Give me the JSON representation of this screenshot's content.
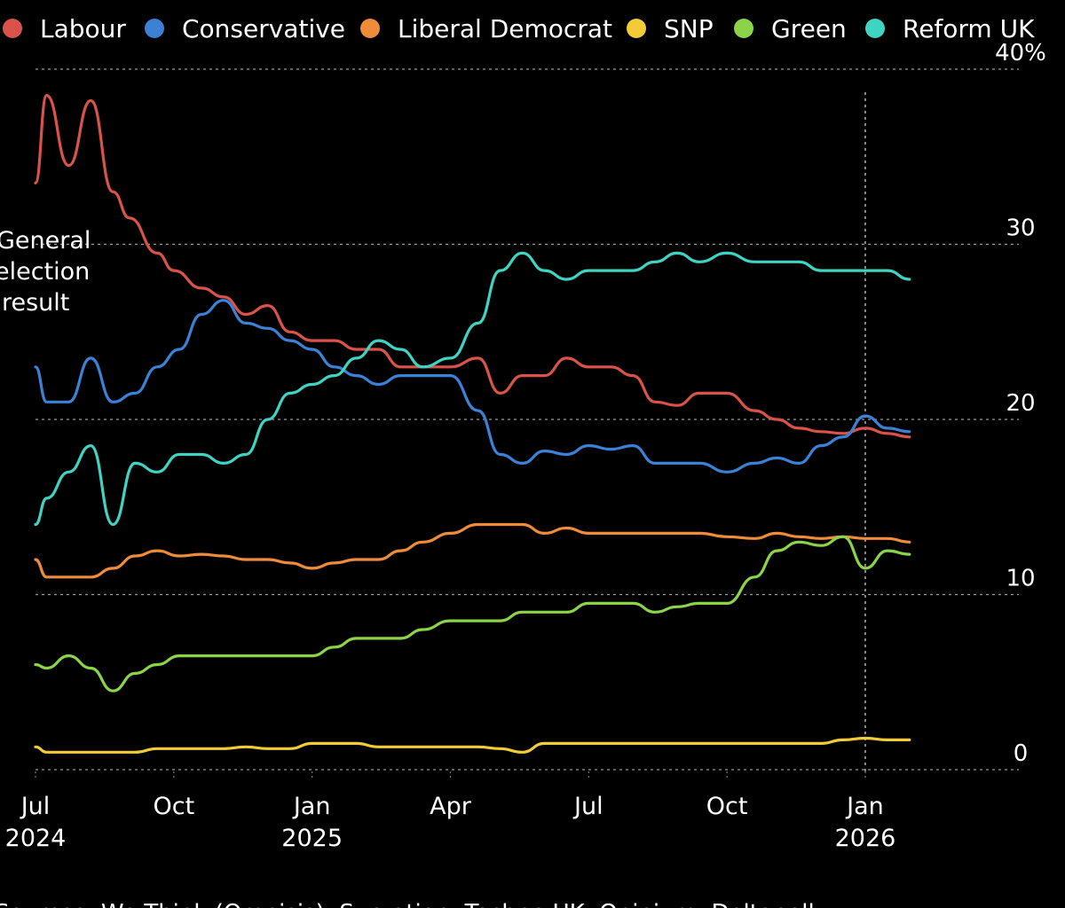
{
  "chart_data": {
    "type": "line",
    "title": "",
    "xlabel": "",
    "ylabel": "",
    "ylim": [
      0,
      40
    ],
    "y_ticks": [
      0,
      10,
      20,
      30,
      40
    ],
    "y_tick_labels": [
      "0",
      "10",
      "20",
      "30",
      "40%"
    ],
    "x_range": [
      2024.5,
      2026.13
    ],
    "x_ticks": [
      {
        "value": 2024.5,
        "line1": "Jul",
        "line2": "2024"
      },
      {
        "value": 2024.75,
        "line1": "Oct",
        "line2": ""
      },
      {
        "value": 2025.0,
        "line1": "Jan",
        "line2": "2025"
      },
      {
        "value": 2025.25,
        "line1": "Apr",
        "line2": ""
      },
      {
        "value": 2025.5,
        "line1": "Jul",
        "line2": ""
      },
      {
        "value": 2025.75,
        "line1": "Oct",
        "line2": ""
      },
      {
        "value": 2026.0,
        "line1": "Jan",
        "line2": "2026"
      }
    ],
    "reference_line": {
      "x": 2026.0
    },
    "annotation": {
      "lines": [
        "General",
        "election",
        "result"
      ]
    },
    "legend_position": "top",
    "source_note": "Sources: We Think (Omnisis), Survation, Techne UK, Opinium, Deltapoll",
    "series": [
      {
        "name": "Labour",
        "color": "#d9534a",
        "x": [
          2024.5,
          2024.52,
          2024.56,
          2024.6,
          2024.64,
          2024.67,
          2024.72,
          2024.75,
          2024.8,
          2024.84,
          2024.88,
          2024.92,
          2024.96,
          2025.0,
          2025.04,
          2025.08,
          2025.12,
          2025.16,
          2025.2,
          2025.25,
          2025.3,
          2025.34,
          2025.38,
          2025.42,
          2025.46,
          2025.5,
          2025.54,
          2025.58,
          2025.62,
          2025.66,
          2025.7,
          2025.75,
          2025.8,
          2025.84,
          2025.88,
          2025.92,
          2025.96,
          2026.0,
          2026.04,
          2026.08
        ],
        "values": [
          33.5,
          38.5,
          34.5,
          38.2,
          33,
          31.5,
          29.5,
          28.5,
          27.5,
          27,
          26,
          26.5,
          25,
          24.5,
          24.5,
          24,
          24,
          23,
          23,
          23,
          23.5,
          21.5,
          22.5,
          22.5,
          23.5,
          23,
          23,
          22.5,
          21,
          20.8,
          21.5,
          21.5,
          20.5,
          20,
          19.5,
          19.3,
          19.2,
          19.5,
          19.2,
          19
        ]
      },
      {
        "name": "Conservative",
        "color": "#3b82d6",
        "x": [
          2024.5,
          2024.52,
          2024.56,
          2024.6,
          2024.64,
          2024.68,
          2024.72,
          2024.76,
          2024.8,
          2024.84,
          2024.88,
          2024.92,
          2024.96,
          2025.0,
          2025.04,
          2025.08,
          2025.12,
          2025.16,
          2025.2,
          2025.25,
          2025.3,
          2025.34,
          2025.38,
          2025.42,
          2025.46,
          2025.5,
          2025.54,
          2025.58,
          2025.62,
          2025.66,
          2025.7,
          2025.75,
          2025.8,
          2025.84,
          2025.88,
          2025.92,
          2025.96,
          2026.0,
          2026.04,
          2026.08
        ],
        "values": [
          23,
          21,
          21,
          23.5,
          21,
          21.5,
          23,
          24,
          26,
          26.8,
          25.5,
          25.2,
          24.5,
          24,
          23,
          22.5,
          22,
          22.5,
          22.5,
          22.5,
          20.5,
          18,
          17.5,
          18.2,
          18,
          18.5,
          18.3,
          18.5,
          17.5,
          17.5,
          17.5,
          17,
          17.5,
          17.8,
          17.5,
          18.5,
          19,
          20.2,
          19.5,
          19.3
        ]
      },
      {
        "name": "Liberal Democrat",
        "color": "#ef8c3a",
        "x": [
          2024.5,
          2024.52,
          2024.56,
          2024.6,
          2024.64,
          2024.68,
          2024.72,
          2024.76,
          2024.8,
          2024.84,
          2024.88,
          2024.92,
          2024.96,
          2025.0,
          2025.04,
          2025.08,
          2025.12,
          2025.16,
          2025.2,
          2025.25,
          2025.3,
          2025.34,
          2025.38,
          2025.42,
          2025.46,
          2025.5,
          2025.54,
          2025.58,
          2025.62,
          2025.66,
          2025.7,
          2025.75,
          2025.8,
          2025.84,
          2025.88,
          2025.92,
          2025.96,
          2026.0,
          2026.04,
          2026.08
        ],
        "values": [
          12,
          11,
          11,
          11,
          11.5,
          12.2,
          12.5,
          12.2,
          12.3,
          12.2,
          12,
          12,
          11.8,
          11.5,
          11.8,
          12,
          12,
          12.5,
          13,
          13.5,
          14,
          14,
          14,
          13.5,
          13.8,
          13.5,
          13.5,
          13.5,
          13.5,
          13.5,
          13.5,
          13.3,
          13.2,
          13.5,
          13.3,
          13.2,
          13.3,
          13.2,
          13.2,
          13
        ]
      },
      {
        "name": "SNP",
        "color": "#f2cc38",
        "x": [
          2024.5,
          2024.52,
          2024.56,
          2024.6,
          2024.64,
          2024.68,
          2024.72,
          2024.76,
          2024.8,
          2024.84,
          2024.88,
          2024.92,
          2024.96,
          2025.0,
          2025.04,
          2025.08,
          2025.12,
          2025.16,
          2025.2,
          2025.25,
          2025.3,
          2025.34,
          2025.38,
          2025.42,
          2025.46,
          2025.5,
          2025.54,
          2025.58,
          2025.62,
          2025.66,
          2025.7,
          2025.75,
          2025.8,
          2025.84,
          2025.88,
          2025.92,
          2025.96,
          2026.0,
          2026.04,
          2026.08
        ],
        "values": [
          1.3,
          1,
          1,
          1,
          1,
          1,
          1.2,
          1.2,
          1.2,
          1.2,
          1.3,
          1.2,
          1.2,
          1.5,
          1.5,
          1.5,
          1.3,
          1.3,
          1.3,
          1.3,
          1.3,
          1.2,
          1,
          1.5,
          1.5,
          1.5,
          1.5,
          1.5,
          1.5,
          1.5,
          1.5,
          1.5,
          1.5,
          1.5,
          1.5,
          1.5,
          1.7,
          1.8,
          1.7,
          1.7
        ]
      },
      {
        "name": "Green",
        "color": "#8bd44a",
        "x": [
          2024.5,
          2024.52,
          2024.56,
          2024.6,
          2024.64,
          2024.68,
          2024.72,
          2024.76,
          2024.8,
          2024.84,
          2024.88,
          2024.92,
          2024.96,
          2025.0,
          2025.04,
          2025.08,
          2025.12,
          2025.16,
          2025.2,
          2025.25,
          2025.3,
          2025.34,
          2025.38,
          2025.42,
          2025.46,
          2025.5,
          2025.54,
          2025.58,
          2025.62,
          2025.66,
          2025.7,
          2025.75,
          2025.8,
          2025.84,
          2025.88,
          2025.92,
          2025.96,
          2026.0,
          2026.04,
          2026.08
        ],
        "values": [
          6,
          5.8,
          6.5,
          5.8,
          4.5,
          5.5,
          6,
          6.5,
          6.5,
          6.5,
          6.5,
          6.5,
          6.5,
          6.5,
          7,
          7.5,
          7.5,
          7.5,
          8,
          8.5,
          8.5,
          8.5,
          9,
          9,
          9,
          9.5,
          9.5,
          9.5,
          9,
          9.3,
          9.5,
          9.5,
          11,
          12.5,
          13,
          12.8,
          13.3,
          11.5,
          12.5,
          12.3
        ]
      },
      {
        "name": "Reform UK",
        "color": "#3fd3c4",
        "x": [
          2024.5,
          2024.52,
          2024.56,
          2024.6,
          2024.64,
          2024.68,
          2024.72,
          2024.76,
          2024.8,
          2024.84,
          2024.88,
          2024.92,
          2024.96,
          2025.0,
          2025.04,
          2025.08,
          2025.12,
          2025.16,
          2025.2,
          2025.25,
          2025.3,
          2025.34,
          2025.38,
          2025.42,
          2025.46,
          2025.5,
          2025.54,
          2025.58,
          2025.62,
          2025.66,
          2025.7,
          2025.75,
          2025.8,
          2025.84,
          2025.88,
          2025.92,
          2025.96,
          2026.0,
          2026.04,
          2026.08
        ],
        "values": [
          14,
          15.5,
          17,
          18.5,
          14,
          17.5,
          17,
          18,
          18,
          17.5,
          18,
          20,
          21.5,
          22,
          22.5,
          23.5,
          24.5,
          24,
          23,
          23.5,
          25.5,
          28.5,
          29.5,
          28.5,
          28,
          28.5,
          28.5,
          28.5,
          29,
          29.5,
          29,
          29.5,
          29,
          29,
          29,
          28.5,
          28.5,
          28.5,
          28.5,
          28
        ]
      }
    ]
  }
}
